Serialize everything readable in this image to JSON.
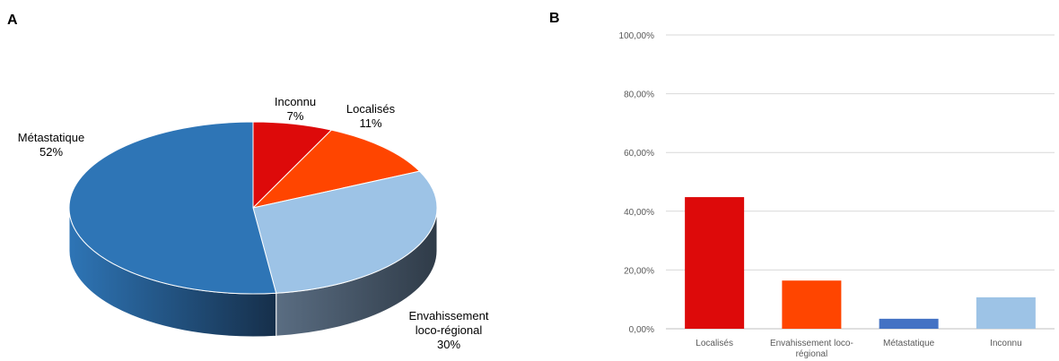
{
  "panels": {
    "a": "A",
    "b": "B"
  },
  "chart_data": [
    {
      "type": "pie",
      "labels": [
        "Inconnu",
        "Localisés",
        "Envahissement loco-régional",
        "Métastatique"
      ],
      "label_lines": [
        [
          "Inconnu",
          "7%"
        ],
        [
          "Localisés",
          "11%"
        ],
        [
          "Envahissement",
          "loco-régional",
          "30%"
        ],
        [
          "Métastatique",
          "52%"
        ]
      ],
      "values": [
        7,
        11,
        30,
        52
      ],
      "colors": [
        "#DD0A0A",
        "#FF4500",
        "#9DC3E6",
        "#2E75B6"
      ],
      "side_colors": [
        "#8F0606",
        "#A62D00",
        "#44546A",
        "#1F4E79"
      ],
      "three_d": true
    },
    {
      "type": "bar",
      "categories": [
        "Localisés",
        "Envahissement loco-régional",
        "Métastatique",
        "Inconnu"
      ],
      "category_lines": [
        [
          "Localisés"
        ],
        [
          "Envahissement loco-",
          "régional"
        ],
        [
          "Métastatique"
        ],
        [
          "Inconnu"
        ]
      ],
      "values": [
        44.8,
        16.4,
        3.4,
        10.7
      ],
      "colors": [
        "#DD0A0A",
        "#FF4500",
        "#4472C4",
        "#9DC3E6"
      ],
      "ylim": [
        0,
        100
      ],
      "yticks": [
        "0,00%",
        "20,00%",
        "40,00%",
        "60,00%",
        "80,00%",
        "100,00%"
      ],
      "ytick_values": [
        0,
        20,
        40,
        60,
        80,
        100
      ],
      "grid": true
    }
  ]
}
